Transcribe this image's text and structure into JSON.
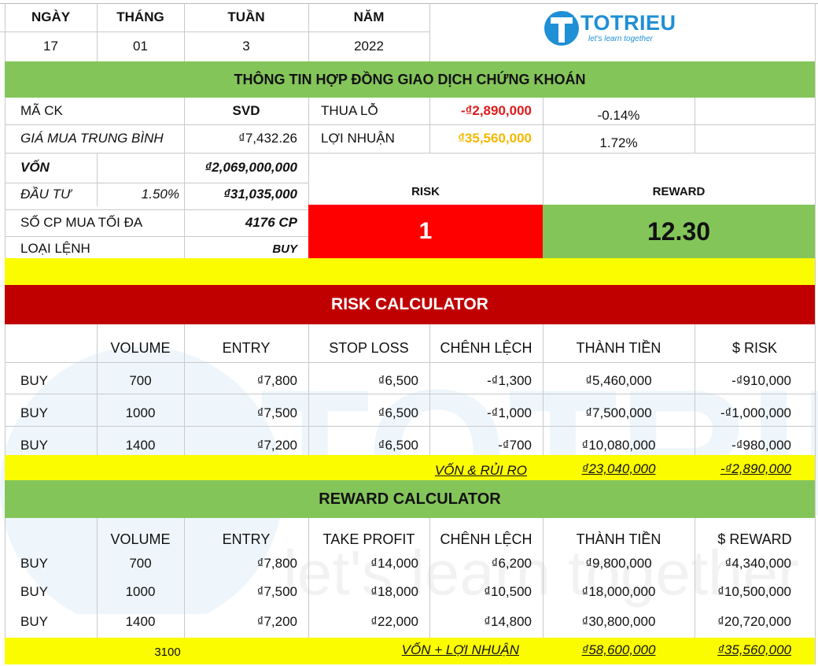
{
  "date_header": {
    "day_label": "NGÀY",
    "month_label": "THÁNG",
    "week_label": "TUẦN",
    "year_label": "NĂM",
    "day": "17",
    "month": "01",
    "week": "3",
    "year": "2022"
  },
  "logo": {
    "name": "TOTRIEU",
    "tagline": "let's learn together"
  },
  "contract_title": "THÔNG TIN HỢP ĐỒNG GIAO DỊCH CHỨNG KHOÁN",
  "info": {
    "ticker_label": "MÃ CK",
    "ticker": "SVD",
    "avg_price_label": "GIÁ MUA TRUNG BÌNH",
    "avg_price": "₫7,432.26",
    "capital_label": "VỐN",
    "capital": "₫2,069,000,000",
    "invest_label": "ĐẦU TƯ",
    "invest_pct": "1.50%",
    "invest_amount": "₫31,035,000",
    "max_shares_label": "SỐ CP MUA TỐI ĐA",
    "max_shares": "4176 CP",
    "order_type_label": "LOẠI LỆNH",
    "order_type": "BUY",
    "loss_label": "THUA LỖ",
    "loss": "-₫2,890,000",
    "loss_pct": "-0.14%",
    "profit_label": "LỢI NHUẬN",
    "profit": "₫35,560,000",
    "profit_pct": "1.72%",
    "risk_label": "RISK",
    "risk_value": "1",
    "reward_label": "REWARD",
    "reward_value": "12.30"
  },
  "risk_calc": {
    "title": "RISK CALCULATOR",
    "headers": [
      "",
      "VOLUME",
      "ENTRY",
      "STOP LOSS",
      "CHÊNH LỆCH",
      "THÀNH TIỀN",
      "$ RISK"
    ],
    "rows": [
      [
        "BUY",
        "700",
        "₫7,800",
        "₫6,500",
        "-₫1,300",
        "₫5,460,000",
        "-₫910,000"
      ],
      [
        "BUY",
        "1000",
        "₫7,500",
        "₫6,500",
        "-₫1,000",
        "₫7,500,000",
        "-₫1,000,000"
      ],
      [
        "BUY",
        "1400",
        "₫7,200",
        "₫6,500",
        "-₫700",
        "₫10,080,000",
        "-₫980,000"
      ]
    ],
    "total_label": "VỐN & RỦI RO",
    "total_amount": "₫23,040,000",
    "total_risk": "-₫2,890,000"
  },
  "reward_calc": {
    "title": "REWARD CALCULATOR",
    "headers": [
      "",
      "VOLUME",
      "ENTRY",
      "TAKE PROFIT",
      "CHÊNH LỆCH",
      "THÀNH TIỀN",
      "$ REWARD"
    ],
    "rows": [
      [
        "BUY",
        "700",
        "₫7,800",
        "₫14,000",
        "₫6,200",
        "₫9,800,000",
        "₫4,340,000"
      ],
      [
        "BUY",
        "1000",
        "₫7,500",
        "₫18,000",
        "₫10,500",
        "₫18,000,000",
        "₫10,500,000"
      ],
      [
        "BUY",
        "1400",
        "₫7,200",
        "₫22,000",
        "₫14,800",
        "₫30,800,000",
        "₫20,720,000"
      ]
    ],
    "total_volume": "3100",
    "total_label": "VỐN + LỢI NHUẬN",
    "total_amount": "₫58,600,000",
    "total_reward": "₫35,560,000"
  },
  "colors": {
    "green": "#84c55a",
    "yellow": "#fbfc00",
    "dark_red": "#c00000",
    "red": "#ff0000",
    "orange": "#f5b800",
    "logo_blue": "#1f8fd6"
  }
}
